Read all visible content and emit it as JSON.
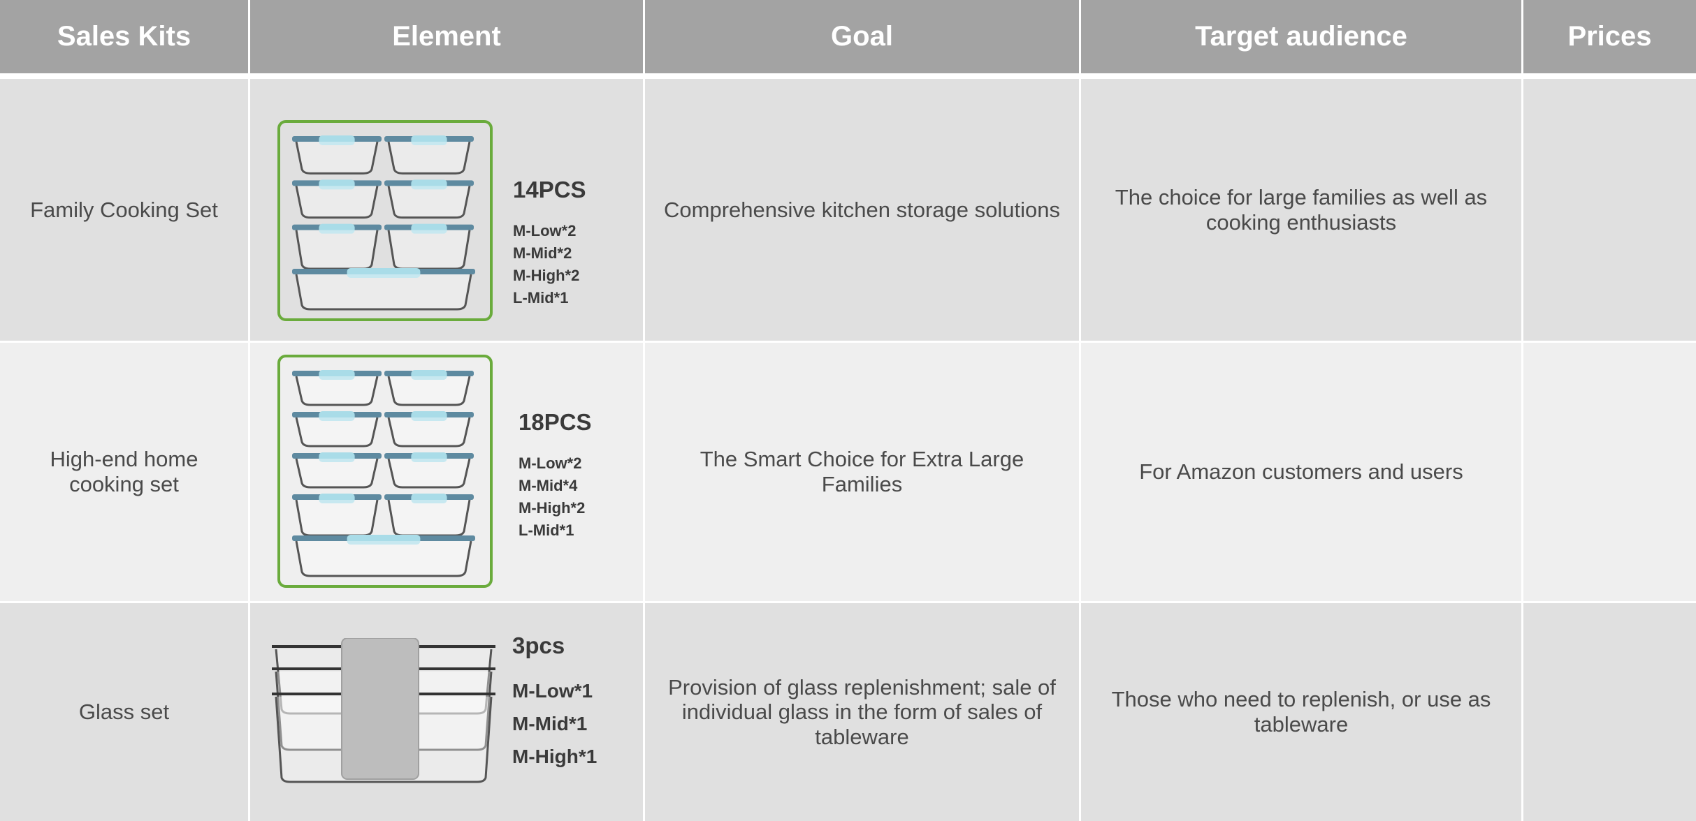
{
  "table": {
    "header": [
      "Sales Kits",
      "Element",
      "Goal",
      "Target audience",
      "Prices"
    ],
    "rows": [
      {
        "kit": "Family Cooking Set",
        "element": {
          "count": "14PCS",
          "items": [
            "M-Low*2",
            "M-Mid*2",
            "M-High*2",
            "L-Mid*1"
          ]
        },
        "goal": "Comprehensive kitchen storage solutions",
        "audience": "The choice for large families as well as cooking enthusiasts"
      },
      {
        "kit": "High-end home cooking set",
        "element": {
          "count": "18PCS",
          "items": [
            "M-Low*2",
            "M-Mid*4",
            "M-High*2",
            "L-Mid*1"
          ]
        },
        "goal": "The Smart Choice for Extra Large Families",
        "audience": "For Amazon customers and users"
      },
      {
        "kit": "Glass set",
        "element": {
          "count": "3pcs",
          "items": [
            "M-Low*1",
            "M-Mid*1",
            "M-High*1"
          ]
        },
        "goal": "Provision of glass replenishment; sale of individual glass in the form of sales of tableware",
        "audience": "Those who need to replenish, or use as tableware"
      }
    ]
  }
}
